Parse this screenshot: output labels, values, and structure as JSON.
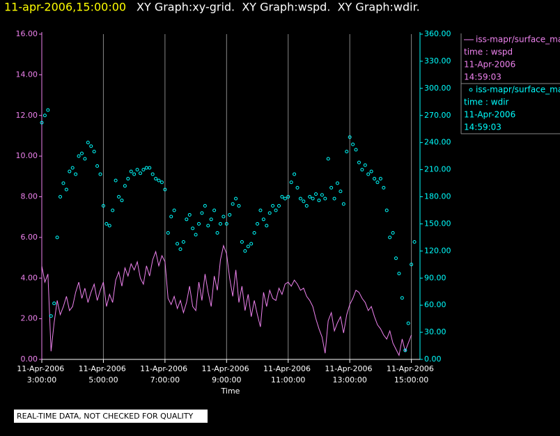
{
  "chart_data": {
    "type": "line",
    "timestamp": "11-apr-2006,15:00:00",
    "title": "XY Graph:xy-grid.  XY Graph:wspd.  XY Graph:wdir.",
    "xlabel": "Time",
    "footer": "REAL-TIME DATA, NOT CHECKED FOR QUALITY",
    "grid": true,
    "x": [
      3.0,
      3.1,
      3.2,
      3.3,
      3.4,
      3.5,
      3.6,
      3.7,
      3.8,
      3.9,
      4.0,
      4.1,
      4.2,
      4.3,
      4.4,
      4.5,
      4.6,
      4.7,
      4.8,
      4.9,
      5.0,
      5.1,
      5.2,
      5.3,
      5.4,
      5.5,
      5.6,
      5.7,
      5.8,
      5.9,
      6.0,
      6.1,
      6.2,
      6.3,
      6.4,
      6.5,
      6.6,
      6.7,
      6.8,
      6.9,
      7.0,
      7.1,
      7.2,
      7.3,
      7.4,
      7.5,
      7.6,
      7.7,
      7.8,
      7.9,
      8.0,
      8.1,
      8.2,
      8.3,
      8.4,
      8.5,
      8.6,
      8.7,
      8.8,
      8.9,
      9.0,
      9.1,
      9.2,
      9.3,
      9.4,
      9.5,
      9.6,
      9.7,
      9.8,
      9.9,
      10.0,
      10.1,
      10.2,
      10.3,
      10.4,
      10.5,
      10.6,
      10.7,
      10.8,
      10.9,
      11.0,
      11.1,
      11.2,
      11.3,
      11.4,
      11.5,
      11.6,
      11.7,
      11.8,
      11.9,
      12.0,
      12.1,
      12.2,
      12.3,
      12.4,
      12.5,
      12.6,
      12.7,
      12.8,
      12.9,
      13.0,
      13.1,
      13.2,
      13.3,
      13.4,
      13.5,
      13.6,
      13.7,
      13.8,
      13.9,
      14.0,
      14.1,
      14.2,
      14.3,
      14.4,
      14.5,
      14.6,
      14.7,
      14.8,
      14.9,
      15.0,
      15.1,
      15.2
    ],
    "xlim": [
      3,
      15.28
    ],
    "xticks": [
      {
        "value": 3,
        "label": "11-Apr-2006 3:00:00"
      },
      {
        "value": 5,
        "label": "11-Apr-2006 5:00:00"
      },
      {
        "value": 7,
        "label": "11-Apr-2006 7:00:00"
      },
      {
        "value": 9,
        "label": "11-Apr-2006 9:00:00"
      },
      {
        "value": 11,
        "label": "11-Apr-2006 11:00:00"
      },
      {
        "value": 13,
        "label": "11-Apr-2006 13:00:00"
      },
      {
        "value": 15,
        "label": "11-Apr-2006 15:00:00"
      }
    ],
    "ylim": [
      0,
      16
    ],
    "yticks": [
      {
        "value": 0,
        "label": "0.00"
      },
      {
        "value": 2,
        "label": "2.00"
      },
      {
        "value": 4,
        "label": "4.00"
      },
      {
        "value": 6,
        "label": "6.00"
      },
      {
        "value": 8,
        "label": "8.00"
      },
      {
        "value": 10,
        "label": "10.00"
      },
      {
        "value": 12,
        "label": "12.00"
      },
      {
        "value": 14,
        "label": "14.00"
      },
      {
        "value": 16,
        "label": "16.00"
      }
    ],
    "y2lim": [
      0,
      360
    ],
    "y2ticks": [
      {
        "value": 0,
        "label": "0.00"
      },
      {
        "value": 30,
        "label": "30.00"
      },
      {
        "value": 60,
        "label": "60.00"
      },
      {
        "value": 90,
        "label": "90.00"
      },
      {
        "value": 120,
        "label": "120.00"
      },
      {
        "value": 150,
        "label": "150.00"
      },
      {
        "value": 180,
        "label": "180.00"
      },
      {
        "value": 210,
        "label": "210.00"
      },
      {
        "value": 240,
        "label": "240.00"
      },
      {
        "value": 270,
        "label": "270.00"
      },
      {
        "value": 300,
        "label": "300.00"
      },
      {
        "value": 330,
        "label": "330.00"
      },
      {
        "value": 360,
        "label": "360.00"
      }
    ],
    "series": [
      {
        "name": "iss-mapr/surface_mapr",
        "type": "line",
        "color": "#ee82ee",
        "legend": [
          "time : wspd",
          "11-Apr-2006",
          "14:59:03"
        ],
        "values": [
          4.6,
          3.8,
          4.2,
          0.4,
          1.8,
          2.9,
          2.2,
          2.6,
          3.1,
          2.4,
          2.6,
          3.3,
          3.8,
          3.0,
          3.5,
          2.8,
          3.3,
          3.7,
          2.9,
          3.4,
          3.8,
          2.6,
          3.2,
          2.8,
          3.9,
          4.3,
          3.6,
          4.5,
          4.1,
          4.7,
          4.4,
          4.8,
          4.0,
          3.7,
          4.6,
          4.1,
          4.9,
          5.3,
          4.6,
          5.1,
          4.8,
          3.0,
          2.7,
          3.1,
          2.5,
          2.9,
          2.3,
          2.8,
          3.6,
          2.6,
          2.4,
          3.8,
          2.9,
          4.2,
          3.3,
          2.6,
          4.1,
          3.4,
          4.9,
          5.6,
          5.2,
          4.0,
          3.1,
          4.4,
          2.8,
          3.6,
          2.4,
          3.2,
          2.1,
          2.9,
          2.2,
          1.6,
          3.3,
          2.6,
          3.4,
          3.0,
          2.9,
          3.5,
          3.2,
          3.7,
          3.8,
          3.6,
          3.9,
          3.7,
          3.4,
          3.5,
          3.1,
          2.9,
          2.6,
          2.0,
          1.5,
          1.1,
          0.3,
          1.9,
          2.3,
          1.4,
          1.8,
          2.1,
          1.3,
          2.2,
          2.7,
          3.0,
          3.4,
          3.3,
          3.0,
          2.8,
          2.4,
          2.6,
          2.1,
          1.7,
          1.5,
          1.2,
          1.0,
          1.4,
          0.8,
          0.5,
          0.2,
          1.0,
          0.4,
          0.8,
          1.2,
          null,
          null
        ]
      },
      {
        "name": "iss-mapr/surface_mapr",
        "type": "scatter",
        "axis": "y2",
        "color": "#00ffff",
        "legend": [
          "time : wdir",
          "11-Apr-2006",
          "14:59:03"
        ],
        "values": [
          262,
          270,
          276,
          48,
          62,
          135,
          180,
          195,
          188,
          208,
          212,
          205,
          225,
          228,
          222,
          240,
          236,
          230,
          214,
          205,
          170,
          150,
          148,
          165,
          198,
          180,
          176,
          192,
          200,
          208,
          205,
          210,
          206,
          210,
          212,
          212,
          205,
          200,
          198,
          196,
          188,
          140,
          158,
          165,
          128,
          122,
          130,
          155,
          160,
          145,
          138,
          150,
          162,
          170,
          148,
          155,
          165,
          140,
          150,
          158,
          150,
          160,
          172,
          178,
          170,
          130,
          120,
          125,
          128,
          140,
          150,
          165,
          155,
          148,
          162,
          170,
          165,
          170,
          180,
          178,
          180,
          196,
          205,
          190,
          178,
          175,
          170,
          180,
          178,
          183,
          176,
          182,
          178,
          222,
          190,
          178,
          195,
          186,
          172,
          230,
          246,
          238,
          232,
          218,
          210,
          215,
          205,
          208,
          200,
          196,
          200,
          190,
          165,
          135,
          140,
          112,
          95,
          68,
          10,
          40,
          105,
          130,
          null
        ]
      }
    ]
  }
}
